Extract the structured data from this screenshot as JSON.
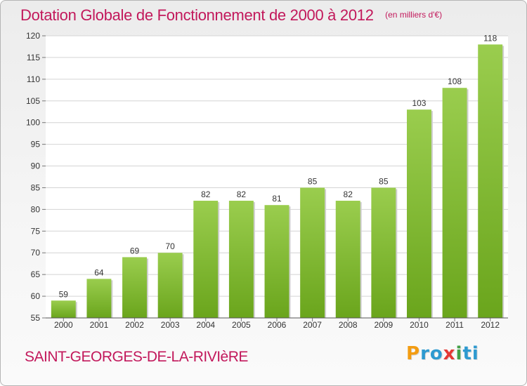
{
  "chart_data": {
    "type": "bar",
    "title": "Dotation Globale de Fonctionnement de 2000 à 2012",
    "subtitle": "(en milliers d'€)",
    "categories": [
      "2000",
      "2001",
      "2002",
      "2003",
      "2004",
      "2005",
      "2006",
      "2007",
      "2008",
      "2009",
      "2010",
      "2011",
      "2012"
    ],
    "values": [
      59,
      64,
      69,
      70,
      82,
      82,
      81,
      85,
      82,
      85,
      103,
      108,
      118
    ],
    "ylim": [
      55,
      120
    ],
    "yticks": [
      55,
      60,
      65,
      70,
      75,
      80,
      85,
      90,
      95,
      100,
      105,
      110,
      115,
      120
    ],
    "grid": true,
    "bar_color_top": "#9acd4e",
    "bar_color_bottom": "#6aa51c"
  },
  "commune": "SAINT-GEORGES-DE-LA-RIVIèRE",
  "logo": {
    "letters": [
      "P",
      "r",
      "o",
      "x",
      "i",
      "t",
      "i"
    ],
    "colors": [
      "#f39c12",
      "#2e9ad0",
      "#2e9ad0",
      "#e53935",
      "#43a047",
      "#2e9ad0",
      "#2e9ad0"
    ]
  },
  "colors": {
    "accent": "#c2185b",
    "grid": "#d4d4d4",
    "axis_text": "#333333"
  }
}
